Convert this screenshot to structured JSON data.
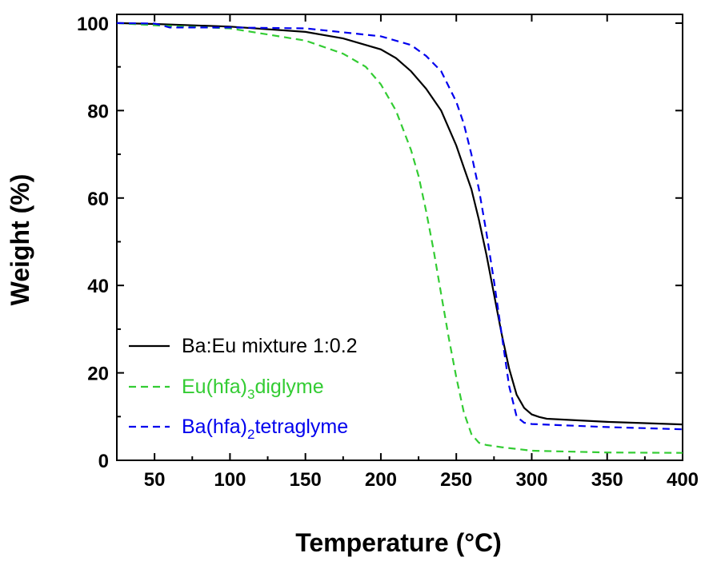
{
  "chart_data": {
    "type": "line",
    "xlabel": "Temperature (°C)",
    "ylabel": "Weight (%)",
    "xlim": [
      25,
      400
    ],
    "ylim": [
      0,
      102
    ],
    "xticks": [
      50,
      100,
      150,
      200,
      250,
      300,
      350,
      400
    ],
    "yticks": [
      0,
      20,
      40,
      60,
      80,
      100
    ],
    "grid": false,
    "legend_position": "bottom-left",
    "series": [
      {
        "name": "Ba:Eu  mixture 1:0.2",
        "color": "#000000",
        "dash": "solid",
        "legend_base": "Ba:Eu  mixture 1:0.2",
        "legend_sub": "",
        "legend_suffix": "",
        "x": [
          25,
          50,
          100,
          150,
          175,
          200,
          210,
          220,
          230,
          240,
          250,
          255,
          260,
          265,
          270,
          275,
          280,
          285,
          290,
          295,
          300,
          305,
          310,
          350,
          400
        ],
        "y": [
          100,
          99.8,
          99.2,
          98,
          96.5,
          94,
          92,
          89,
          85,
          80,
          72,
          67,
          62,
          55,
          47,
          38,
          29,
          21,
          15,
          12,
          10.5,
          9.9,
          9.5,
          8.8,
          8.2
        ]
      },
      {
        "name": "Eu(hfa)3diglyme",
        "color": "#33cc33",
        "dash": "dashed",
        "legend_base": "Eu(hfa)",
        "legend_sub": "3",
        "legend_suffix": "diglyme",
        "x": [
          25,
          50,
          100,
          150,
          175,
          190,
          200,
          210,
          220,
          225,
          230,
          235,
          240,
          245,
          250,
          255,
          260,
          265,
          270,
          280,
          300,
          350,
          400
        ],
        "y": [
          100,
          99.5,
          98.8,
          96,
          93,
          90,
          86,
          80,
          71,
          65,
          57,
          48,
          38,
          28,
          19,
          11,
          6,
          4,
          3.5,
          3,
          2.2,
          1.8,
          1.7
        ]
      },
      {
        "name": "Ba(hfa)2tetraglyme",
        "color": "#0000ee",
        "dash": "dashed",
        "legend_base": "Ba(hfa)",
        "legend_sub": "2",
        "legend_suffix": "tetraglyme",
        "x": [
          25,
          50,
          55,
          60,
          100,
          150,
          200,
          220,
          230,
          240,
          250,
          255,
          260,
          265,
          270,
          275,
          280,
          285,
          290,
          295,
          300,
          350,
          400
        ],
        "y": [
          100,
          99.9,
          99.5,
          99,
          99,
          98.8,
          97,
          95,
          92.5,
          89,
          82,
          77,
          70,
          62,
          52,
          41,
          29,
          17,
          10,
          8.6,
          8.3,
          7.6,
          7.1
        ]
      }
    ]
  }
}
